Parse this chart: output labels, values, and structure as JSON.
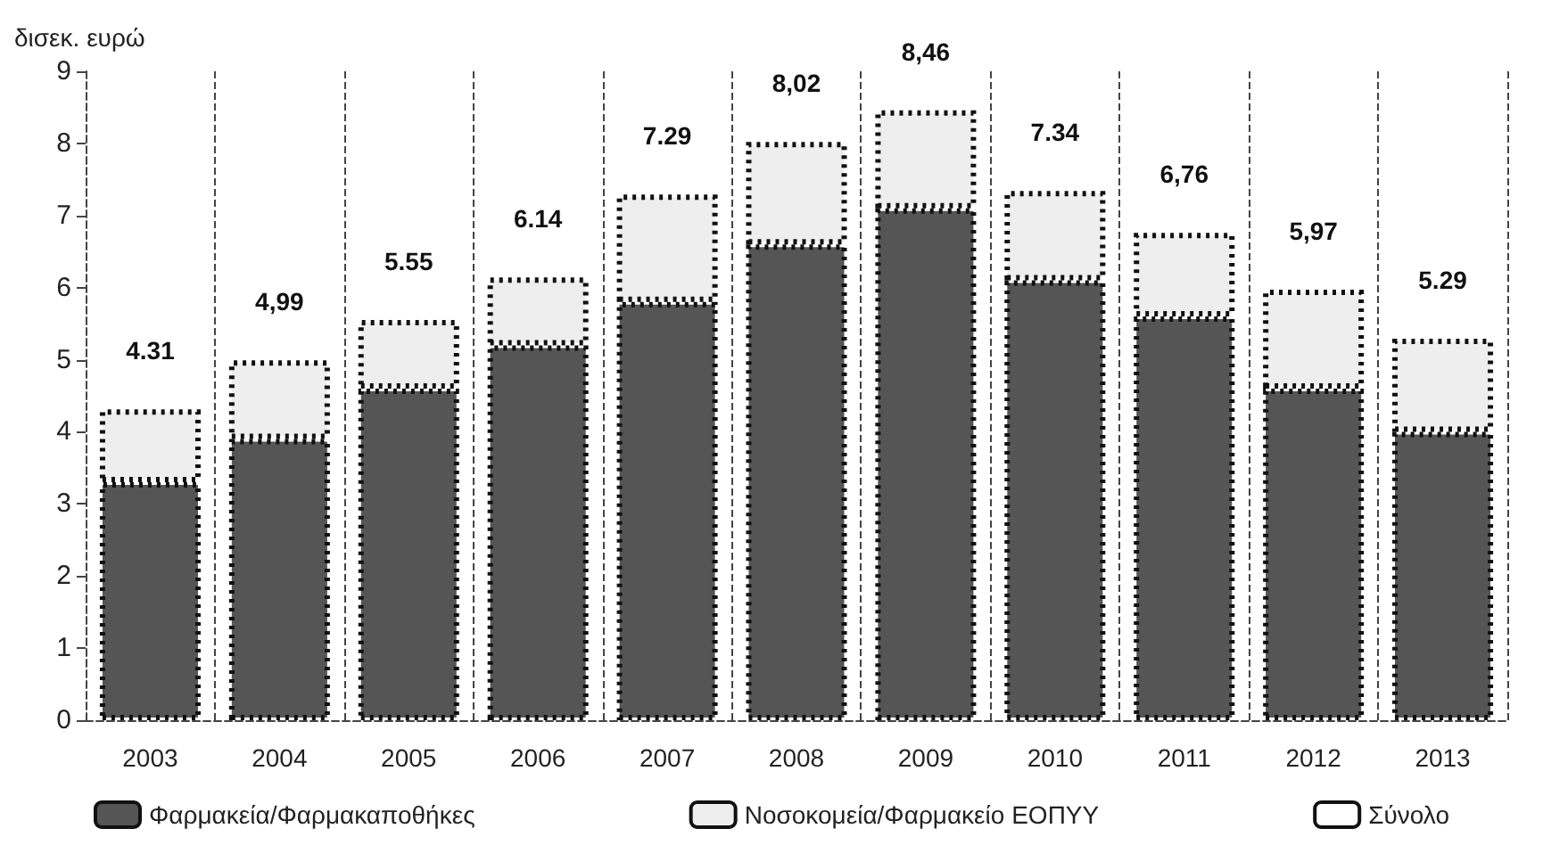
{
  "chart_data": {
    "type": "bar",
    "stacked": true,
    "ylabel": "δισεκ. ευρώ",
    "categories": [
      "2003",
      "2004",
      "2005",
      "2006",
      "2007",
      "2008",
      "2009",
      "2010",
      "2011",
      "2012",
      "2013"
    ],
    "series": [
      {
        "name": "Φαρμακεία/Φαρμακαποθήκες",
        "color": "#555555",
        "values": [
          3.3,
          3.9,
          4.6,
          5.2,
          5.8,
          6.6,
          7.1,
          6.1,
          5.6,
          4.6,
          4.0
        ]
      },
      {
        "name": "Νοσοκομεία/Φαρμακείο ΕΟΠΥΥ",
        "color": "#eeeeee",
        "values": [
          1.01,
          1.09,
          0.95,
          0.94,
          1.49,
          1.42,
          1.36,
          1.24,
          1.16,
          1.37,
          1.29
        ]
      },
      {
        "name": "Σύνολο",
        "line_style": "dotted",
        "color": "#111111",
        "values": [
          null,
          null,
          null,
          null,
          null,
          null,
          null,
          null,
          null,
          null,
          null
        ]
      }
    ],
    "totals": [
      "4.31",
      "4,99",
      "5.55",
      "6.14",
      "7.29",
      "8,02",
      "8,46",
      "7.34",
      "6,76",
      "5,97",
      "5.29"
    ],
    "ylim": [
      0,
      9
    ],
    "yticks": [
      0,
      1,
      2,
      3,
      4,
      5,
      6,
      7,
      8,
      9
    ],
    "grid": "x",
    "legend": "bottom"
  }
}
